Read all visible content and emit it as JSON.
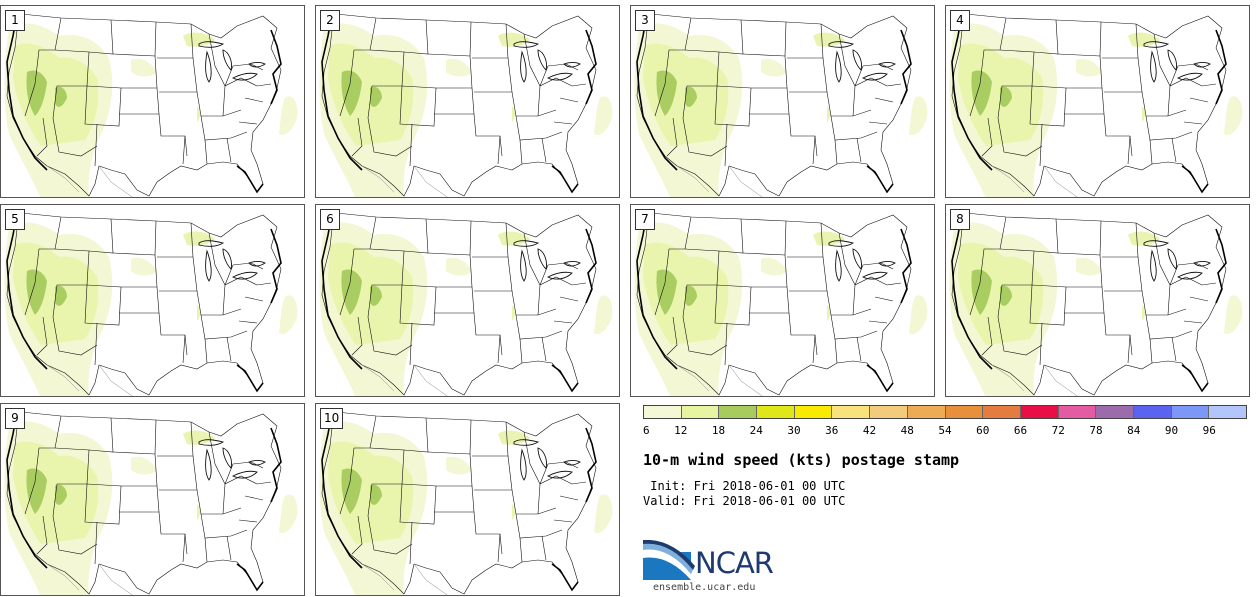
{
  "panels": [
    {
      "label": "1"
    },
    {
      "label": "2"
    },
    {
      "label": "3"
    },
    {
      "label": "4"
    },
    {
      "label": "5"
    },
    {
      "label": "6"
    },
    {
      "label": "7"
    },
    {
      "label": "8"
    },
    {
      "label": "9"
    },
    {
      "label": "10"
    }
  ],
  "colorbar": {
    "colors": [
      "#f5f8d6",
      "#e7f4a2",
      "#a8cb5e",
      "#dfe719",
      "#f8ea00",
      "#f8e27b",
      "#f3cb7d",
      "#ecab54",
      "#e88f3c",
      "#e47c40",
      "#e80e46",
      "#e35ba2",
      "#9c6bab",
      "#5a64f0",
      "#7d97f9",
      "#b2c6fb"
    ],
    "ticks": [
      "6",
      "12",
      "18",
      "24",
      "30",
      "36",
      "42",
      "48",
      "54",
      "60",
      "66",
      "72",
      "78",
      "84",
      "90",
      "96"
    ]
  },
  "title": "10-m wind speed (kts) postage stamp",
  "init": " Init: Fri 2018-06-01 00 UTC",
  "valid": "Valid: Fri 2018-06-01 00 UTC",
  "logo_text": "NCAR",
  "site": "ensemble.ucar.edu"
}
